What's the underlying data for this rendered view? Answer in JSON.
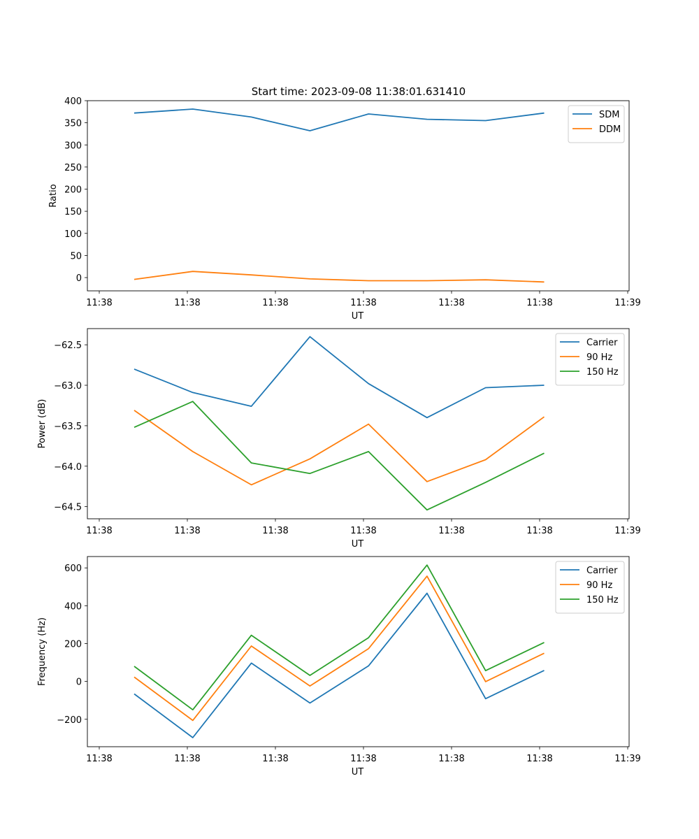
{
  "figure": {
    "title": "Start time: 2023-09-08 11:38:01.631410"
  },
  "chart_data": [
    {
      "type": "line",
      "title": "Start time: 2023-09-08 11:38:01.631410",
      "xlabel": "UT",
      "ylabel": "Ratio",
      "x_ticks": [
        "11:38",
        "11:38",
        "11:38",
        "11:38",
        "11:38",
        "11:38",
        "11:39"
      ],
      "x": [
        1,
        2,
        3,
        4,
        5,
        6,
        7,
        8
      ],
      "xlim": [
        0.2,
        9.45
      ],
      "ylim": [
        -30,
        400
      ],
      "y_ticks": [
        0,
        50,
        100,
        150,
        200,
        250,
        300,
        350,
        400
      ],
      "y_tick_labels": [
        "0",
        "50",
        "100",
        "150",
        "200",
        "250",
        "300",
        "350",
        "400"
      ],
      "legend": "top-right",
      "series": [
        {
          "name": "SDM",
          "color": "#1f77b4",
          "values": [
            372,
            381,
            363,
            332,
            370,
            358,
            355,
            372
          ]
        },
        {
          "name": "DDM",
          "color": "#ff7f0e",
          "values": [
            -4,
            14,
            6,
            -3,
            -7,
            -7,
            -5,
            -10
          ]
        }
      ]
    },
    {
      "type": "line",
      "title": "",
      "xlabel": "UT",
      "ylabel": "Power (dB)",
      "x_ticks": [
        "11:38",
        "11:38",
        "11:38",
        "11:38",
        "11:38",
        "11:38",
        "11:39"
      ],
      "x": [
        1,
        2,
        3,
        4,
        5,
        6,
        7,
        8
      ],
      "xlim": [
        0.2,
        9.45
      ],
      "ylim": [
        -64.65,
        -62.3
      ],
      "y_ticks": [
        -64.5,
        -64.0,
        -63.5,
        -63.0,
        -62.5
      ],
      "y_tick_labels": [
        "−64.5",
        "−64.0",
        "−63.5",
        "−63.0",
        "−62.5"
      ],
      "legend": "top-right",
      "series": [
        {
          "name": "Carrier",
          "color": "#1f77b4",
          "values": [
            -62.8,
            -63.09,
            -63.26,
            -62.4,
            -62.98,
            -63.4,
            -63.03,
            -63.0
          ]
        },
        {
          "name": "90 Hz",
          "color": "#ff7f0e",
          "values": [
            -63.31,
            -63.82,
            -64.23,
            -63.91,
            -63.48,
            -64.19,
            -63.92,
            -63.39
          ]
        },
        {
          "name": "150 Hz",
          "color": "#2ca02c",
          "values": [
            -63.52,
            -63.2,
            -63.96,
            -64.09,
            -63.82,
            -64.54,
            -64.2,
            -63.84
          ]
        }
      ]
    },
    {
      "type": "line",
      "title": "",
      "xlabel": "UT",
      "ylabel": "Frequency (Hz)",
      "x_ticks": [
        "11:38",
        "11:38",
        "11:38",
        "11:38",
        "11:38",
        "11:38",
        "11:39"
      ],
      "x": [
        1,
        2,
        3,
        4,
        5,
        6,
        7,
        8
      ],
      "xlim": [
        0.2,
        9.45
      ],
      "ylim": [
        -345,
        660
      ],
      "y_ticks": [
        -200,
        0,
        200,
        400,
        600
      ],
      "y_tick_labels": [
        "−200",
        "0",
        "200",
        "400",
        "600"
      ],
      "legend": "top-right",
      "series": [
        {
          "name": "Carrier",
          "color": "#1f77b4",
          "values": [
            -66,
            -297,
            97,
            -114,
            82,
            466,
            -91,
            58
          ]
        },
        {
          "name": "90 Hz",
          "color": "#ff7f0e",
          "values": [
            23,
            -206,
            187,
            -24,
            173,
            556,
            -1,
            149
          ]
        },
        {
          "name": "150 Hz",
          "color": "#2ca02c",
          "values": [
            80,
            -150,
            244,
            32,
            231,
            615,
            57,
            206
          ]
        }
      ]
    }
  ]
}
